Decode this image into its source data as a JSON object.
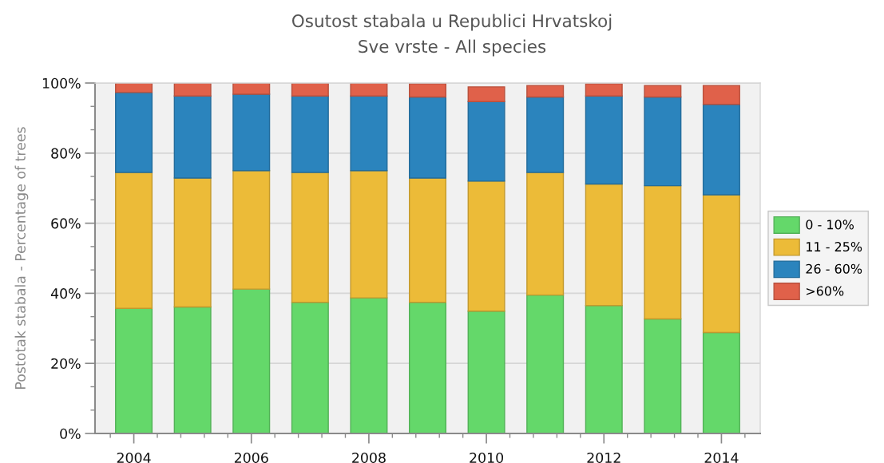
{
  "chart_data": {
    "type": "bar",
    "stacked": true,
    "title": "Osutost stabala u Republici Hrvatskoj",
    "subtitle": "Sve vrste - All species",
    "ylabel": "Postotak stabala - Percentage of trees",
    "x": [
      2004,
      2005,
      2006,
      2007,
      2008,
      2009,
      2010,
      2011,
      2012,
      2013,
      2014
    ],
    "series": [
      {
        "name": "0 - 10%",
        "color": "#64d86a",
        "values": [
          35.7,
          36.1,
          41.2,
          37.4,
          38.7,
          37.4,
          34.9,
          39.5,
          36.5,
          32.7,
          28.8
        ]
      },
      {
        "name": "11 - 25%",
        "color": "#ecbb38",
        "values": [
          38.8,
          36.8,
          33.8,
          37.1,
          36.3,
          35.5,
          37.1,
          35.0,
          34.7,
          38.0,
          39.3
        ]
      },
      {
        "name": "26 - 60%",
        "color": "#2b84bd",
        "values": [
          22.8,
          23.4,
          21.8,
          21.8,
          21.3,
          23.1,
          22.7,
          21.5,
          25.1,
          25.3,
          25.8
        ]
      },
      {
        "name": ">60%",
        "color": "#e0614a",
        "values": [
          2.7,
          3.7,
          3.2,
          3.7,
          3.7,
          3.8,
          4.2,
          3.3,
          3.5,
          3.3,
          5.4
        ]
      }
    ],
    "xlim": [
      2003.34,
      2014.66
    ],
    "xticks": [
      2004,
      2006,
      2008,
      2010,
      2012,
      2014
    ],
    "ylim": [
      0,
      100
    ],
    "yticks": [
      {
        "value": 0,
        "label": "0%"
      },
      {
        "value": 20,
        "label": "20%"
      },
      {
        "value": 40,
        "label": "40%"
      },
      {
        "value": 60,
        "label": "60%"
      },
      {
        "value": 80,
        "label": "80%"
      },
      {
        "value": 100,
        "label": "100%"
      }
    ],
    "grid": "y",
    "legend": "right"
  }
}
